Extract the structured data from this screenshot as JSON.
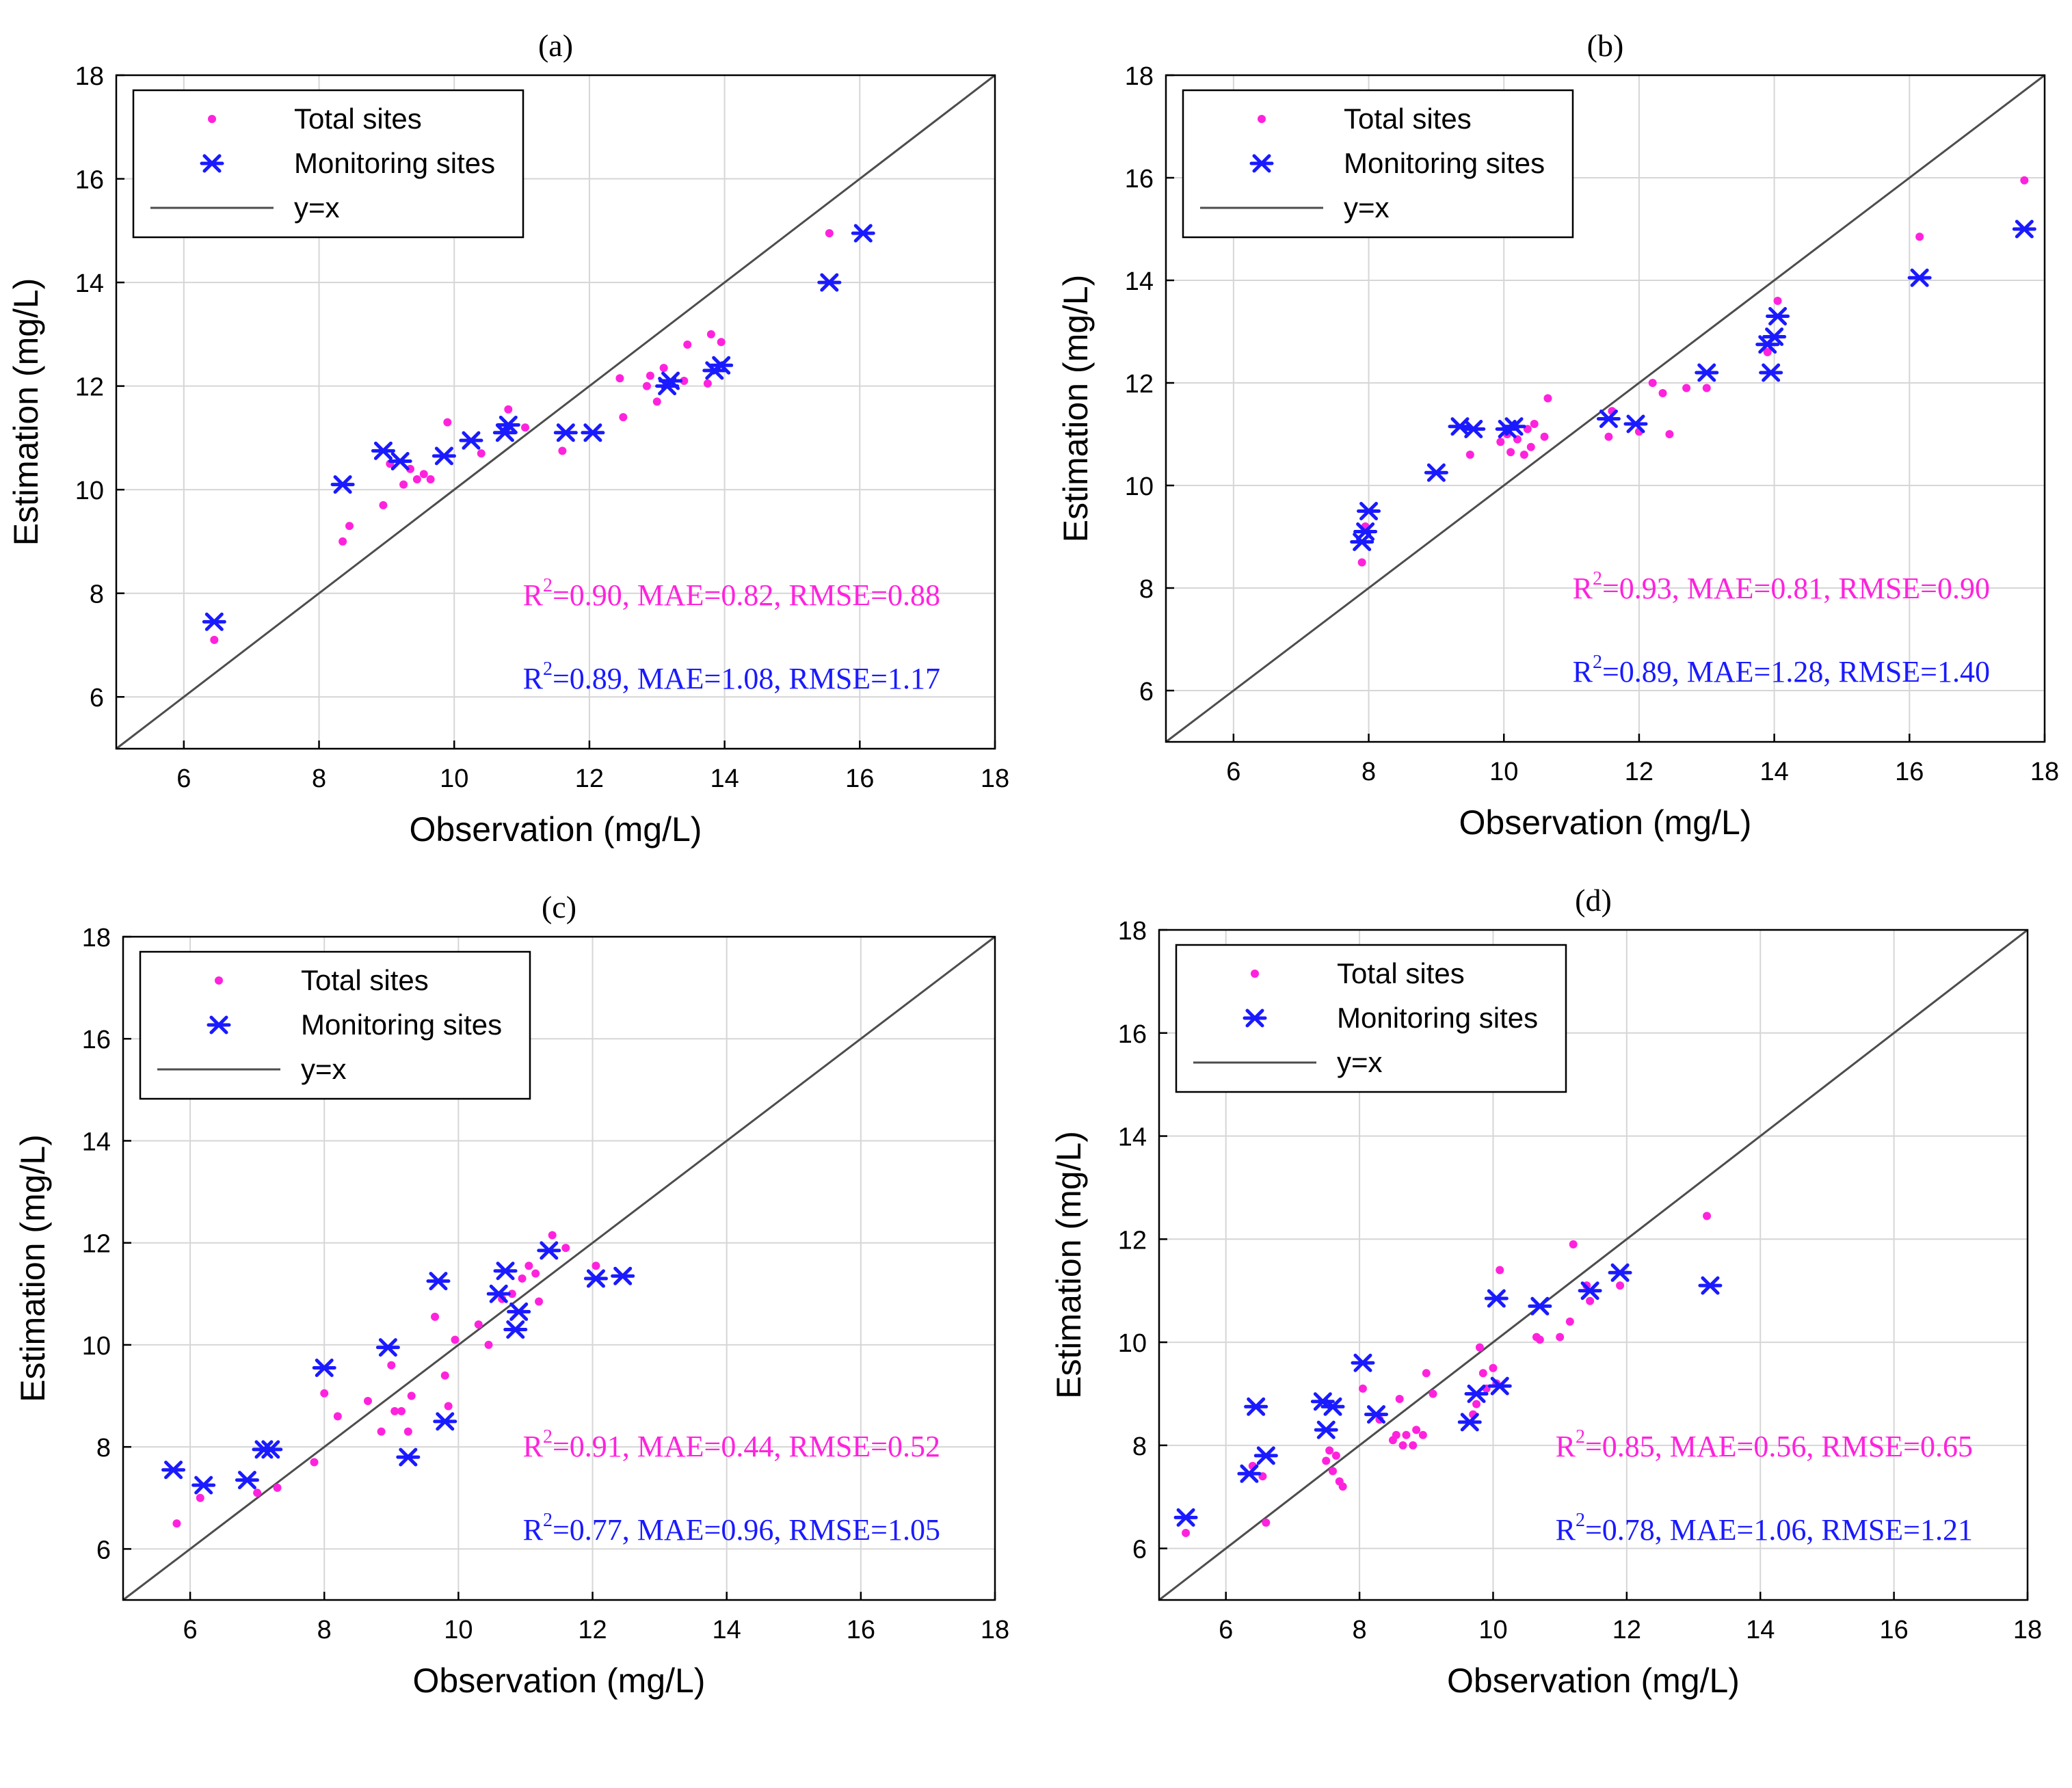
{
  "chart_data": [
    {
      "type": "scatter",
      "title": "(a)",
      "xlabel": "Observation (mg/L)",
      "ylabel": "Estimation (mg/L)",
      "xlim": [
        5,
        18
      ],
      "ylim": [
        5,
        18
      ],
      "xticks": [
        6,
        8,
        10,
        12,
        14,
        16,
        18
      ],
      "yticks": [
        6,
        8,
        10,
        12,
        14,
        16,
        18
      ],
      "grid": true,
      "legend_position": "top-left",
      "legend": [
        {
          "label": "Total sites",
          "marker": "dot",
          "color": "#ff22dd"
        },
        {
          "label": "Monitoring sites",
          "marker": "asterisk",
          "color": "#1a1aff"
        },
        {
          "label": "y=x",
          "marker": "line",
          "color": "#4d4d4d"
        }
      ],
      "stats": [
        {
          "pre": "R",
          "sup": "2",
          "post": "=0.90, MAE=0.82, RMSE=0.88",
          "color": "#ff22dd"
        },
        {
          "pre": "R",
          "sup": "2",
          "post": "=0.89, MAE=1.08, RMSE=1.17",
          "color": "#1a1aff"
        }
      ],
      "series": [
        {
          "name": "Total sites",
          "points": [
            [
              6.45,
              7.1
            ],
            [
              8.35,
              9.0
            ],
            [
              8.45,
              9.3
            ],
            [
              8.95,
              9.7
            ],
            [
              9.05,
              10.5
            ],
            [
              9.25,
              10.1
            ],
            [
              9.35,
              10.4
            ],
            [
              9.45,
              10.2
            ],
            [
              9.55,
              10.3
            ],
            [
              9.65,
              10.2
            ],
            [
              9.9,
              11.3
            ],
            [
              10.4,
              10.7
            ],
            [
              10.8,
              11.55
            ],
            [
              11.05,
              11.2
            ],
            [
              11.6,
              10.75
            ],
            [
              12.45,
              12.15
            ],
            [
              12.5,
              11.4
            ],
            [
              12.85,
              12.0
            ],
            [
              12.9,
              12.2
            ],
            [
              13.0,
              11.7
            ],
            [
              13.1,
              12.35
            ],
            [
              13.4,
              12.1
            ],
            [
              13.45,
              12.8
            ],
            [
              13.75,
              12.05
            ],
            [
              13.8,
              13.0
            ],
            [
              13.95,
              12.85
            ],
            [
              15.55,
              14.95
            ]
          ]
        },
        {
          "name": "Monitoring sites",
          "points": [
            [
              6.45,
              7.45
            ],
            [
              8.35,
              10.1
            ],
            [
              8.95,
              10.75
            ],
            [
              9.2,
              10.55
            ],
            [
              9.85,
              10.65
            ],
            [
              10.25,
              10.95
            ],
            [
              10.75,
              11.1
            ],
            [
              10.8,
              11.25
            ],
            [
              11.65,
              11.1
            ],
            [
              12.05,
              11.1
            ],
            [
              13.15,
              12.0
            ],
            [
              13.2,
              12.1
            ],
            [
              13.85,
              12.3
            ],
            [
              13.95,
              12.4
            ],
            [
              15.55,
              14.0
            ],
            [
              16.05,
              14.95
            ]
          ]
        }
      ]
    },
    {
      "type": "scatter",
      "title": "(b)",
      "xlabel": "Observation (mg/L)",
      "ylabel": "Estimation (mg/L)",
      "xlim": [
        5,
        18
      ],
      "ylim": [
        5,
        18
      ],
      "xticks": [
        6,
        8,
        10,
        12,
        14,
        16,
        18
      ],
      "yticks": [
        6,
        8,
        10,
        12,
        14,
        16,
        18
      ],
      "grid": true,
      "legend_position": "top-left",
      "legend": [
        {
          "label": "Total sites",
          "marker": "dot",
          "color": "#ff22dd"
        },
        {
          "label": "Monitoring sites",
          "marker": "asterisk",
          "color": "#1a1aff"
        },
        {
          "label": "y=x",
          "marker": "line",
          "color": "#4d4d4d"
        }
      ],
      "stats": [
        {
          "pre": "R",
          "sup": "2",
          "post": "=0.93, MAE=0.81, RMSE=0.90",
          "color": "#ff22dd"
        },
        {
          "pre": "R",
          "sup": "2",
          "post": "=0.89, MAE=1.28, RMSE=1.40",
          "color": "#1a1aff"
        }
      ],
      "series": [
        {
          "name": "Total sites",
          "points": [
            [
              7.9,
              8.5
            ],
            [
              7.95,
              9.2
            ],
            [
              9.5,
              10.6
            ],
            [
              9.95,
              10.85
            ],
            [
              10.05,
              11.0
            ],
            [
              10.1,
              10.65
            ],
            [
              10.2,
              10.9
            ],
            [
              10.3,
              10.6
            ],
            [
              10.35,
              11.1
            ],
            [
              10.4,
              10.75
            ],
            [
              10.45,
              11.2
            ],
            [
              10.6,
              10.95
            ],
            [
              10.65,
              11.7
            ],
            [
              11.55,
              10.95
            ],
            [
              11.6,
              11.45
            ],
            [
              12.0,
              11.05
            ],
            [
              12.2,
              12.0
            ],
            [
              12.35,
              11.8
            ],
            [
              12.45,
              11.0
            ],
            [
              12.7,
              11.9
            ],
            [
              13.0,
              11.9
            ],
            [
              13.9,
              12.6
            ],
            [
              14.05,
              13.6
            ],
            [
              16.15,
              14.85
            ],
            [
              17.7,
              15.95
            ]
          ]
        },
        {
          "name": "Monitoring sites",
          "points": [
            [
              7.9,
              8.9
            ],
            [
              7.95,
              9.1
            ],
            [
              8.0,
              9.5
            ],
            [
              9.0,
              10.25
            ],
            [
              9.35,
              11.15
            ],
            [
              9.55,
              11.1
            ],
            [
              10.05,
              11.1
            ],
            [
              10.15,
              11.15
            ],
            [
              11.55,
              11.3
            ],
            [
              11.95,
              11.2
            ],
            [
              13.0,
              12.2
            ],
            [
              13.9,
              12.75
            ],
            [
              13.95,
              12.2
            ],
            [
              14.0,
              12.9
            ],
            [
              14.05,
              13.3
            ],
            [
              16.15,
              14.05
            ],
            [
              17.7,
              15.0
            ]
          ]
        }
      ]
    },
    {
      "type": "scatter",
      "title": "(c)",
      "xlabel": "Observation (mg/L)",
      "ylabel": "Estimation (mg/L)",
      "xlim": [
        5,
        18
      ],
      "ylim": [
        5,
        18
      ],
      "xticks": [
        6,
        8,
        10,
        12,
        14,
        16,
        18
      ],
      "yticks": [
        6,
        8,
        10,
        12,
        14,
        16,
        18
      ],
      "grid": true,
      "legend_position": "top-left",
      "legend": [
        {
          "label": "Total sites",
          "marker": "dot",
          "color": "#ff22dd"
        },
        {
          "label": "Monitoring sites",
          "marker": "asterisk",
          "color": "#1a1aff"
        },
        {
          "label": "y=x",
          "marker": "line",
          "color": "#4d4d4d"
        }
      ],
      "stats": [
        {
          "pre": "R",
          "sup": "2",
          "post": "=0.91, MAE=0.44, RMSE=0.52",
          "color": "#ff22dd"
        },
        {
          "pre": "R",
          "sup": "2",
          "post": "=0.77, MAE=0.96, RMSE=1.05",
          "color": "#1a1aff"
        }
      ],
      "series": [
        {
          "name": "Total sites",
          "points": [
            [
              5.8,
              6.5
            ],
            [
              6.15,
              7.0
            ],
            [
              7.0,
              7.1
            ],
            [
              7.3,
              7.2
            ],
            [
              7.85,
              7.7
            ],
            [
              8.0,
              9.05
            ],
            [
              8.2,
              8.6
            ],
            [
              8.65,
              8.9
            ],
            [
              8.85,
              8.3
            ],
            [
              9.0,
              9.6
            ],
            [
              9.05,
              8.7
            ],
            [
              9.15,
              8.7
            ],
            [
              9.25,
              8.3
            ],
            [
              9.3,
              9.0
            ],
            [
              9.65,
              10.55
            ],
            [
              9.8,
              9.4
            ],
            [
              9.85,
              8.8
            ],
            [
              9.95,
              10.1
            ],
            [
              10.3,
              10.4
            ],
            [
              10.45,
              10.0
            ],
            [
              10.65,
              10.9
            ],
            [
              10.8,
              11.0
            ],
            [
              10.95,
              11.3
            ],
            [
              11.05,
              11.55
            ],
            [
              11.15,
              11.4
            ],
            [
              11.2,
              10.85
            ],
            [
              11.4,
              12.15
            ],
            [
              11.6,
              11.9
            ],
            [
              12.05,
              11.55
            ]
          ]
        },
        {
          "name": "Monitoring sites",
          "points": [
            [
              5.75,
              7.55
            ],
            [
              6.2,
              7.25
            ],
            [
              6.85,
              7.35
            ],
            [
              7.1,
              7.95
            ],
            [
              7.2,
              7.95
            ],
            [
              8.0,
              9.55
            ],
            [
              8.95,
              9.95
            ],
            [
              9.25,
              7.8
            ],
            [
              9.7,
              11.25
            ],
            [
              9.8,
              8.5
            ],
            [
              10.6,
              11.0
            ],
            [
              10.7,
              11.45
            ],
            [
              10.85,
              10.3
            ],
            [
              10.9,
              10.65
            ],
            [
              11.35,
              11.85
            ],
            [
              12.05,
              11.3
            ],
            [
              12.45,
              11.35
            ]
          ]
        }
      ]
    },
    {
      "type": "scatter",
      "title": "(d)",
      "xlabel": "Observation (mg/L)",
      "ylabel": "Estimation (mg/L)",
      "xlim": [
        5,
        18
      ],
      "ylim": [
        5,
        18
      ],
      "xticks": [
        6,
        8,
        10,
        12,
        14,
        16,
        18
      ],
      "yticks": [
        6,
        8,
        10,
        12,
        14,
        16,
        18
      ],
      "grid": true,
      "legend_position": "top-left",
      "legend": [
        {
          "label": "Total sites",
          "marker": "dot",
          "color": "#ff22dd"
        },
        {
          "label": "Monitoring sites",
          "marker": "asterisk",
          "color": "#1a1aff"
        },
        {
          "label": "y=x",
          "marker": "line",
          "color": "#4d4d4d"
        }
      ],
      "stats": [
        {
          "pre": "R",
          "sup": "2",
          "post": "=0.85, MAE=0.56, RMSE=0.65",
          "color": "#ff22dd"
        },
        {
          "pre": "R",
          "sup": "2",
          "post": "=0.78, MAE=1.06, RMSE=1.21",
          "color": "#1a1aff"
        }
      ],
      "series": [
        {
          "name": "Total sites",
          "points": [
            [
              5.4,
              6.3
            ],
            [
              6.4,
              7.6
            ],
            [
              6.55,
              7.4
            ],
            [
              6.6,
              6.5
            ],
            [
              7.5,
              7.7
            ],
            [
              7.55,
              7.9
            ],
            [
              7.6,
              7.5
            ],
            [
              7.65,
              7.8
            ],
            [
              7.7,
              7.3
            ],
            [
              7.75,
              7.2
            ],
            [
              8.05,
              9.1
            ],
            [
              8.3,
              8.5
            ],
            [
              8.5,
              8.1
            ],
            [
              8.55,
              8.2
            ],
            [
              8.6,
              8.9
            ],
            [
              8.65,
              8.0
            ],
            [
              8.7,
              8.2
            ],
            [
              8.8,
              8.0
            ],
            [
              8.85,
              8.3
            ],
            [
              8.95,
              8.2
            ],
            [
              9.0,
              9.4
            ],
            [
              9.1,
              9.0
            ],
            [
              9.7,
              8.6
            ],
            [
              9.75,
              8.8
            ],
            [
              9.8,
              9.9
            ],
            [
              9.85,
              9.4
            ],
            [
              9.9,
              9.1
            ],
            [
              10.0,
              9.5
            ],
            [
              10.05,
              9.2
            ],
            [
              10.1,
              11.4
            ],
            [
              10.65,
              10.1
            ],
            [
              10.7,
              10.05
            ],
            [
              11.0,
              10.1
            ],
            [
              11.15,
              10.4
            ],
            [
              11.2,
              11.9
            ],
            [
              11.4,
              11.1
            ],
            [
              11.45,
              10.8
            ],
            [
              11.9,
              11.1
            ],
            [
              13.2,
              12.45
            ]
          ]
        },
        {
          "name": "Monitoring sites",
          "points": [
            [
              5.4,
              6.6
            ],
            [
              6.35,
              7.45
            ],
            [
              6.45,
              8.75
            ],
            [
              6.6,
              7.8
            ],
            [
              7.45,
              8.85
            ],
            [
              7.5,
              8.3
            ],
            [
              7.6,
              8.75
            ],
            [
              8.05,
              9.6
            ],
            [
              8.25,
              8.6
            ],
            [
              9.65,
              8.45
            ],
            [
              9.75,
              9.0
            ],
            [
              10.05,
              10.85
            ],
            [
              10.1,
              9.15
            ],
            [
              10.7,
              10.7
            ],
            [
              11.45,
              11.0
            ],
            [
              11.9,
              11.35
            ],
            [
              13.25,
              11.1
            ]
          ]
        }
      ]
    }
  ]
}
